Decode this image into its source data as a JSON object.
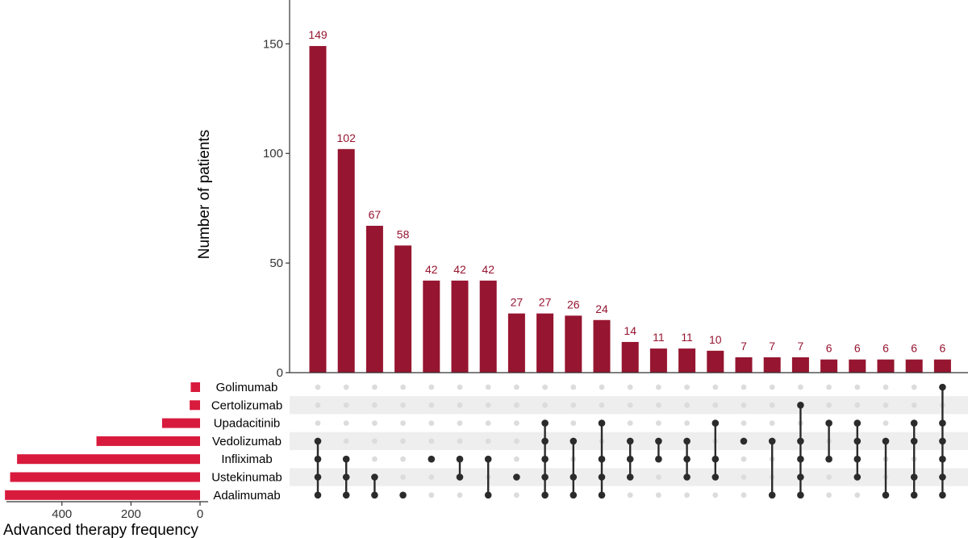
{
  "chart_data": {
    "type": "bar",
    "subtype": "upset",
    "ylabel": "Number of patients",
    "xlabel": "Advanced therapy frequency",
    "ylim": [
      0,
      170
    ],
    "yticks": [
      0,
      50,
      100,
      150
    ],
    "set_size_ticks": [
      400,
      200,
      0
    ],
    "set_size_xlim": [
      0,
      570
    ],
    "colors": {
      "intersection_bar": "#961530",
      "set_bar": "#d81b3d",
      "active_dot": "#2b2b2b",
      "inactive_dot": "#dcdcdc",
      "stripe": "#eeeeee"
    },
    "sets": [
      {
        "name": "Golimumab",
        "size": 27
      },
      {
        "name": "Certolizumab",
        "size": 30
      },
      {
        "name": "Upadacitinib",
        "size": 110
      },
      {
        "name": "Vedolizumab",
        "size": 300
      },
      {
        "name": "Infliximab",
        "size": 530
      },
      {
        "name": "Ustekinumab",
        "size": 550
      },
      {
        "name": "Adalimumab",
        "size": 565
      }
    ],
    "intersections": [
      {
        "value": 149,
        "sets": [
          "Adalimumab",
          "Ustekinumab",
          "Infliximab",
          "Vedolizumab"
        ]
      },
      {
        "value": 102,
        "sets": [
          "Adalimumab",
          "Ustekinumab",
          "Infliximab"
        ]
      },
      {
        "value": 67,
        "sets": [
          "Adalimumab",
          "Ustekinumab"
        ]
      },
      {
        "value": 58,
        "sets": [
          "Adalimumab"
        ]
      },
      {
        "value": 42,
        "sets": [
          "Infliximab"
        ]
      },
      {
        "value": 42,
        "sets": [
          "Ustekinumab",
          "Infliximab"
        ]
      },
      {
        "value": 42,
        "sets": [
          "Adalimumab",
          "Infliximab"
        ]
      },
      {
        "value": 27,
        "sets": [
          "Ustekinumab"
        ]
      },
      {
        "value": 27,
        "sets": [
          "Adalimumab",
          "Ustekinumab",
          "Infliximab",
          "Vedolizumab",
          "Upadacitinib"
        ]
      },
      {
        "value": 26,
        "sets": [
          "Adalimumab",
          "Ustekinumab",
          "Vedolizumab"
        ]
      },
      {
        "value": 24,
        "sets": [
          "Adalimumab",
          "Ustekinumab",
          "Infliximab",
          "Upadacitinib"
        ]
      },
      {
        "value": 14,
        "sets": [
          "Ustekinumab",
          "Infliximab",
          "Vedolizumab"
        ]
      },
      {
        "value": 11,
        "sets": [
          "Infliximab",
          "Vedolizumab"
        ]
      },
      {
        "value": 11,
        "sets": [
          "Ustekinumab",
          "Infliximab",
          "Vedolizumab"
        ]
      },
      {
        "value": 10,
        "sets": [
          "Ustekinumab",
          "Infliximab",
          "Upadacitinib"
        ]
      },
      {
        "value": 7,
        "sets": [
          "Vedolizumab"
        ]
      },
      {
        "value": 7,
        "sets": [
          "Adalimumab",
          "Vedolizumab"
        ]
      },
      {
        "value": 7,
        "sets": [
          "Adalimumab",
          "Ustekinumab",
          "Infliximab",
          "Vedolizumab",
          "Certolizumab"
        ]
      },
      {
        "value": 6,
        "sets": [
          "Infliximab",
          "Upadacitinib"
        ]
      },
      {
        "value": 6,
        "sets": [
          "Ustekinumab",
          "Infliximab",
          "Vedolizumab",
          "Upadacitinib"
        ]
      },
      {
        "value": 6,
        "sets": [
          "Adalimumab",
          "Vedolizumab"
        ]
      },
      {
        "value": 6,
        "sets": [
          "Adalimumab",
          "Ustekinumab",
          "Vedolizumab",
          "Upadacitinib"
        ]
      },
      {
        "value": 6,
        "sets": [
          "Adalimumab",
          "Ustekinumab",
          "Infliximab",
          "Vedolizumab",
          "Upadacitinib",
          "Golimumab"
        ]
      }
    ]
  }
}
